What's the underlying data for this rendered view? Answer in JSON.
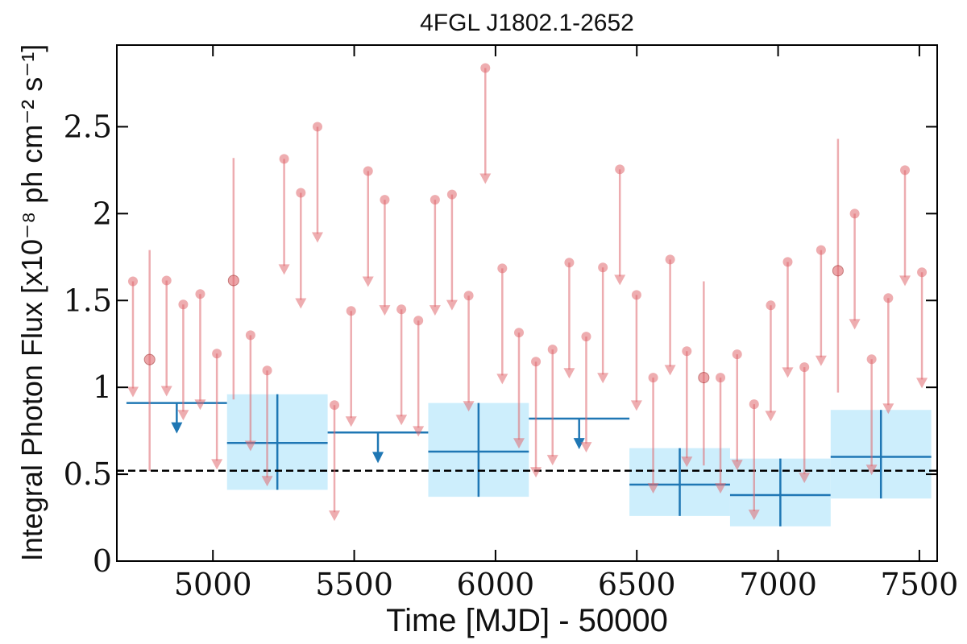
{
  "chart_data": {
    "type": "upper-limit-lightcurve",
    "title": "4FGL J1802.1-2652",
    "xlabel": "Time [MJD] - 50000",
    "ylabel": "Integral Photon Flux [x10⁻⁸ ph cm⁻² s⁻¹]",
    "xlim": [
      4660,
      7563
    ],
    "ylim": [
      0,
      2.97
    ],
    "xticks": [
      5000,
      5500,
      6000,
      6500,
      7000,
      7500
    ],
    "yticks": [
      0,
      0.5,
      1,
      1.5,
      2,
      2.5
    ],
    "reference_line": 0.52,
    "series": [
      {
        "color": "#e06a70",
        "x": [
          4717,
          4776,
          4836,
          4895,
          4955,
          5014,
          5073,
          5133,
          5192,
          5252,
          5311,
          5370,
          5430,
          5489,
          5549,
          5608,
          5667,
          5727,
          5786,
          5846,
          5905,
          5964,
          6024,
          6083,
          6143,
          6202,
          6261,
          6321,
          6380,
          6440,
          6499,
          6558,
          6618,
          6677,
          6737,
          6796,
          6855,
          6915,
          6974,
          7034,
          7093,
          7152,
          7212,
          7271,
          7331,
          7390,
          7449,
          7509
        ],
        "values": [
          1.61,
          1.16,
          1.615,
          1.477,
          1.537,
          1.194,
          1.615,
          1.3,
          1.097,
          2.315,
          2.12,
          2.5,
          0.898,
          1.44,
          2.245,
          2.08,
          1.449,
          1.384,
          2.08,
          2.11,
          1.528,
          2.838,
          1.685,
          1.315,
          1.148,
          1.218,
          1.718,
          1.292,
          1.69,
          2.255,
          1.532,
          1.056,
          1.736,
          1.208,
          1.056,
          1.056,
          1.19,
          0.903,
          1.472,
          1.722,
          1.116,
          1.79,
          1.671,
          2.0,
          1.162,
          1.514,
          2.25,
          1.662
        ],
        "upper_limit": [
          true,
          false,
          true,
          true,
          true,
          true,
          false,
          true,
          true,
          true,
          true,
          true,
          true,
          true,
          true,
          true,
          true,
          true,
          true,
          true,
          true,
          true,
          true,
          true,
          true,
          true,
          true,
          true,
          true,
          true,
          true,
          true,
          true,
          true,
          false,
          true,
          true,
          true,
          true,
          true,
          true,
          true,
          false,
          true,
          true,
          true,
          true,
          true
        ],
        "y_low": [
          null,
          0.52,
          null,
          null,
          null,
          null,
          0.93,
          null,
          null,
          null,
          null,
          null,
          null,
          null,
          null,
          null,
          null,
          null,
          null,
          null,
          null,
          null,
          null,
          null,
          null,
          null,
          null,
          null,
          null,
          null,
          null,
          null,
          null,
          null,
          0.55,
          null,
          null,
          null,
          null,
          null,
          null,
          null,
          0.97,
          null,
          null,
          null,
          null,
          null
        ],
        "y_high": [
          null,
          1.79,
          null,
          null,
          null,
          null,
          2.32,
          null,
          null,
          null,
          null,
          null,
          null,
          null,
          null,
          null,
          null,
          null,
          null,
          null,
          null,
          null,
          null,
          null,
          null,
          null,
          null,
          null,
          null,
          null,
          null,
          null,
          null,
          null,
          1.61,
          null,
          null,
          null,
          null,
          null,
          null,
          null,
          2.43,
          null,
          null,
          null,
          null,
          null
        ]
      },
      {
        "color": "#1f77b4",
        "box_color": "#cdeefc",
        "bins": [
          4694,
          5050,
          5406,
          5762,
          6118,
          6474,
          6830,
          7186,
          7542
        ],
        "values": [
          0.91,
          0.68,
          0.74,
          0.63,
          0.82,
          0.44,
          0.38,
          0.6
        ],
        "upper_limit": [
          true,
          false,
          true,
          false,
          true,
          false,
          false,
          false
        ],
        "y_low": [
          null,
          0.41,
          null,
          0.37,
          null,
          0.26,
          0.2,
          0.36
        ],
        "y_high": [
          null,
          0.96,
          null,
          0.91,
          null,
          0.65,
          0.59,
          0.87
        ]
      }
    ]
  }
}
